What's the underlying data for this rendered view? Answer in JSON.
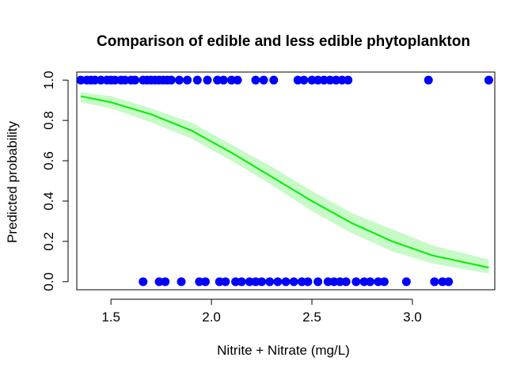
{
  "chart_data": {
    "type": "scatter",
    "title": "Comparison of edible and less edible phytoplankton",
    "xlabel": "Nitrite + Nitrate (mg/L)",
    "ylabel": "Predicted probability",
    "xlim": [
      1.33,
      3.41
    ],
    "ylim": [
      -0.04,
      1.04
    ],
    "x_ticks": [
      1.5,
      2.0,
      2.5,
      3.0
    ],
    "x_tick_labels": [
      "1.5",
      "2.0",
      "2.5",
      "3.0"
    ],
    "y_ticks": [
      0.0,
      0.2,
      0.4,
      0.6,
      0.8,
      1.0
    ],
    "y_tick_labels": [
      "0.0",
      "0.2",
      "0.4",
      "0.6",
      "0.8",
      "1.0"
    ],
    "grid": false,
    "colors": {
      "points": "#0000ff",
      "fit_line": "#00ee00",
      "confidence_band": "#c8fac8"
    },
    "series": [
      {
        "kind": "points",
        "x": [
          1.35,
          1.38,
          1.4,
          1.42,
          1.45,
          1.48,
          1.5,
          1.52,
          1.55,
          1.57,
          1.6,
          1.62,
          1.66,
          1.68,
          1.7,
          1.72,
          1.74,
          1.76,
          1.78,
          1.8,
          1.84,
          1.88,
          1.93,
          1.98,
          2.03,
          2.06,
          2.1,
          2.13,
          2.22,
          2.26,
          2.31,
          2.43,
          2.46,
          2.5,
          2.53,
          2.56,
          2.59,
          2.62,
          2.65,
          2.68,
          3.08,
          3.38
        ],
        "y": [
          1,
          1,
          1,
          1,
          1,
          1,
          1,
          1,
          1,
          1,
          1,
          1,
          1,
          1,
          1,
          1,
          1,
          1,
          1,
          1,
          1,
          1,
          1,
          1,
          1,
          1,
          1,
          1,
          1,
          1,
          1,
          1,
          1,
          1,
          1,
          1,
          1,
          1,
          1,
          1,
          1,
          1
        ]
      },
      {
        "kind": "points",
        "x": [
          1.66,
          1.74,
          1.77,
          1.85,
          1.94,
          1.97,
          2.04,
          2.07,
          2.12,
          2.15,
          2.19,
          2.22,
          2.25,
          2.29,
          2.33,
          2.37,
          2.41,
          2.45,
          2.48,
          2.53,
          2.58,
          2.61,
          2.64,
          2.67,
          2.72,
          2.76,
          2.79,
          2.83,
          2.86,
          2.97,
          3.11,
          3.15,
          3.18
        ],
        "y": [
          0,
          0,
          0,
          0,
          0,
          0,
          0,
          0,
          0,
          0,
          0,
          0,
          0,
          0,
          0,
          0,
          0,
          0,
          0,
          0,
          0,
          0,
          0,
          0,
          0,
          0,
          0,
          0,
          0,
          0,
          0,
          0,
          0
        ]
      },
      {
        "kind": "fit",
        "x": [
          1.35,
          1.5,
          1.7,
          1.9,
          2.1,
          2.3,
          2.5,
          2.7,
          2.9,
          3.1,
          3.38
        ],
        "y": [
          0.92,
          0.89,
          0.83,
          0.75,
          0.64,
          0.52,
          0.4,
          0.29,
          0.2,
          0.13,
          0.07
        ],
        "lower": [
          0.89,
          0.86,
          0.79,
          0.71,
          0.6,
          0.48,
          0.35,
          0.24,
          0.15,
          0.09,
          0.04
        ],
        "upper": [
          0.94,
          0.92,
          0.86,
          0.79,
          0.68,
          0.57,
          0.45,
          0.34,
          0.26,
          0.18,
          0.11
        ]
      }
    ]
  }
}
